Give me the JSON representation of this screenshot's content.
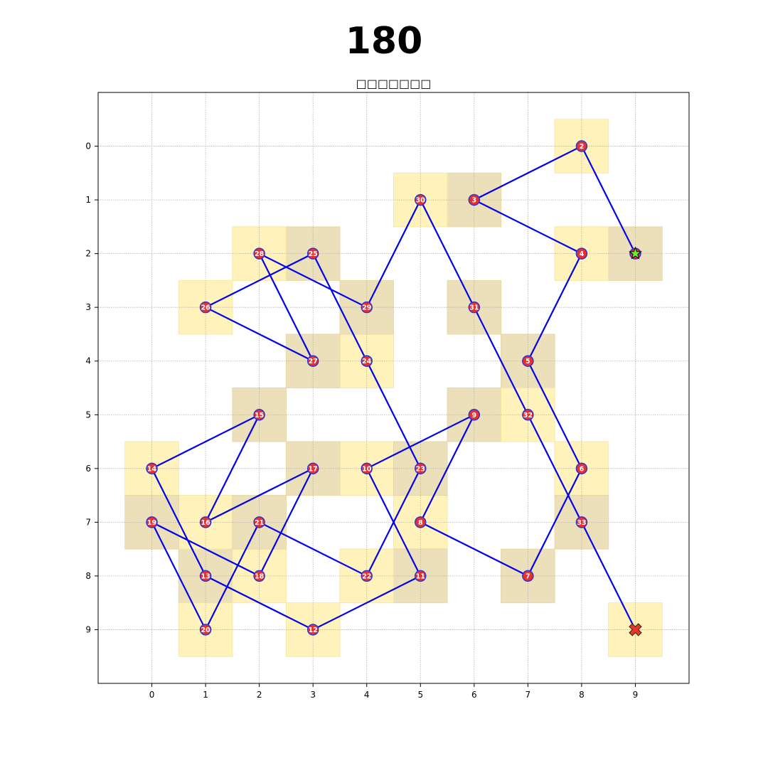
{
  "header": {
    "number": "180"
  },
  "chart_data": {
    "type": "line",
    "title": "□□□□□□□",
    "xlim": [
      -1,
      10
    ],
    "ylim": [
      10,
      -1
    ],
    "y_inverted": true,
    "grid": true,
    "xticks": [
      0,
      1,
      2,
      3,
      4,
      5,
      6,
      7,
      8,
      9
    ],
    "yticks": [
      0,
      1,
      2,
      3,
      4,
      5,
      6,
      7,
      8,
      9
    ],
    "colors": {
      "line": "#0000ee",
      "marker_fill": "#e83030",
      "marker_edge": "#3333cc",
      "square_light": "#fff3b8",
      "square_dark": "#ecdfb8",
      "start": "#66ee33",
      "end": "#ee3322"
    },
    "start": {
      "x": 9,
      "y": 2,
      "marker": "star"
    },
    "end": {
      "x": 9,
      "y": 9,
      "marker": "x"
    },
    "points": [
      {
        "label": "2",
        "x": 8,
        "y": 0
      },
      {
        "label": "3",
        "x": 6,
        "y": 1
      },
      {
        "label": "4",
        "x": 8,
        "y": 2
      },
      {
        "label": "5",
        "x": 7,
        "y": 4
      },
      {
        "label": "6",
        "x": 8,
        "y": 6
      },
      {
        "label": "7",
        "x": 7,
        "y": 8
      },
      {
        "label": "8",
        "x": 5,
        "y": 7
      },
      {
        "label": "9",
        "x": 6,
        "y": 5
      },
      {
        "label": "10",
        "x": 4,
        "y": 6
      },
      {
        "label": "11",
        "x": 5,
        "y": 8
      },
      {
        "label": "12",
        "x": 3,
        "y": 9
      },
      {
        "label": "13",
        "x": 1,
        "y": 8
      },
      {
        "label": "14",
        "x": 0,
        "y": 6
      },
      {
        "label": "15",
        "x": 2,
        "y": 5
      },
      {
        "label": "16",
        "x": 1,
        "y": 7
      },
      {
        "label": "17",
        "x": 3,
        "y": 6
      },
      {
        "label": "18",
        "x": 2,
        "y": 8
      },
      {
        "label": "19",
        "x": 0,
        "y": 7
      },
      {
        "label": "20",
        "x": 1,
        "y": 9
      },
      {
        "label": "21",
        "x": 2,
        "y": 7
      },
      {
        "label": "22",
        "x": 4,
        "y": 8
      },
      {
        "label": "23",
        "x": 5,
        "y": 6
      },
      {
        "label": "24",
        "x": 4,
        "y": 4
      },
      {
        "label": "25",
        "x": 3,
        "y": 2
      },
      {
        "label": "26",
        "x": 1,
        "y": 3
      },
      {
        "label": "27",
        "x": 3,
        "y": 4
      },
      {
        "label": "28",
        "x": 2,
        "y": 2
      },
      {
        "label": "29",
        "x": 4,
        "y": 3
      },
      {
        "label": "30",
        "x": 5,
        "y": 1
      },
      {
        "label": "31",
        "x": 6,
        "y": 3
      },
      {
        "label": "32",
        "x": 7,
        "y": 5
      },
      {
        "label": "33",
        "x": 8,
        "y": 7
      }
    ]
  }
}
